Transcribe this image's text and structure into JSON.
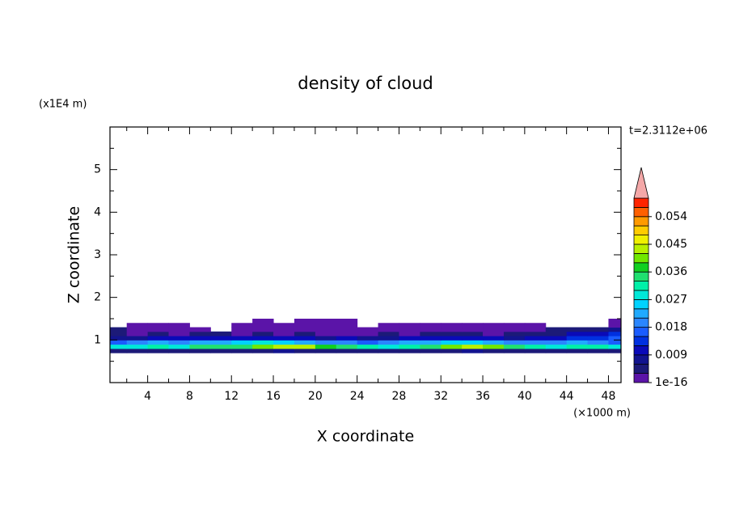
{
  "chart_data": {
    "type": "contour",
    "title": "density of cloud",
    "xlabel": "X coordinate",
    "ylabel": "Z coordinate",
    "x_unit": "(×1000 m)",
    "y_unit": "(x1E4 m)",
    "time_label": "t=2.3112e+06",
    "xlim": [
      0.4,
      49.2
    ],
    "ylim": [
      0,
      6
    ],
    "xticks": [
      4,
      8,
      12,
      16,
      20,
      24,
      28,
      32,
      36,
      40,
      44,
      48
    ],
    "xminorticks": [
      2,
      6,
      10,
      14,
      18,
      22,
      26,
      30,
      34,
      38,
      42,
      46
    ],
    "yticks": [
      1,
      2,
      3,
      4,
      5
    ],
    "yminorticks": [
      0.5,
      1.5,
      2.5,
      3.5,
      4.5,
      5.5
    ],
    "x": [
      1,
      3,
      5,
      7,
      9,
      11,
      13,
      15,
      17,
      19,
      21,
      23,
      25,
      27,
      29,
      31,
      33,
      35,
      37,
      39,
      41,
      43,
      45,
      47,
      49
    ],
    "z": [
      0.75,
      0.85,
      0.95,
      1.05,
      1.15,
      1.25,
      1.35,
      1.45
    ],
    "density": [
      [
        0.005,
        0.004,
        0.005,
        0.004,
        0.006,
        0.005,
        0.004,
        0.006,
        0.007,
        0.005,
        0.004,
        0.005,
        0.004,
        0.005,
        0.004,
        0.005,
        0.006,
        0.007,
        0.005,
        0.004,
        0.005,
        0.004,
        0.005,
        0.004,
        0.005
      ],
      [
        0.03,
        0.028,
        0.032,
        0.03,
        0.034,
        0.036,
        0.035,
        0.042,
        0.044,
        0.043,
        0.038,
        0.034,
        0.031,
        0.029,
        0.033,
        0.036,
        0.041,
        0.043,
        0.04,
        0.035,
        0.032,
        0.03,
        0.033,
        0.031,
        0.029
      ],
      [
        0.018,
        0.02,
        0.022,
        0.019,
        0.024,
        0.022,
        0.025,
        0.028,
        0.026,
        0.024,
        0.021,
        0.019,
        0.018,
        0.02,
        0.022,
        0.024,
        0.027,
        0.025,
        0.023,
        0.021,
        0.02,
        0.019,
        0.022,
        0.02,
        0.018
      ],
      [
        0.008,
        0.009,
        0.011,
        0.01,
        0.012,
        0.01,
        0.011,
        0.012,
        0.011,
        0.01,
        0.009,
        0.01,
        0.008,
        0.009,
        0.011,
        0.01,
        0.012,
        0.011,
        0.01,
        0.009,
        0.011,
        0.012,
        0.014,
        0.015,
        0.016
      ],
      [
        0.004,
        0.003,
        0.004,
        0.003,
        0.005,
        0.004,
        0.003,
        0.004,
        0.003,
        0.004,
        0.003,
        0.002,
        0.003,
        0.004,
        0.003,
        0.004,
        0.005,
        0.004,
        0.003,
        0.004,
        0.005,
        0.006,
        0.01,
        0.012,
        0.013
      ],
      [
        0.004,
        0.002,
        0.001,
        0.002,
        0.001,
        null,
        0.001,
        0.002,
        0.001,
        0.002,
        0.001,
        0.001,
        0.002,
        0.001,
        0.001,
        0.002,
        0.001,
        0.002,
        0.001,
        0.002,
        0.003,
        0.004,
        0.005,
        0.006,
        0.007
      ],
      [
        null,
        0.001,
        0.001,
        0.001,
        null,
        null,
        0.001,
        0.001,
        0.001,
        0.001,
        0.001,
        0.001,
        null,
        0.001,
        0.001,
        0.001,
        0.001,
        0.001,
        0.001,
        0.001,
        0.001,
        null,
        null,
        null,
        0.001
      ],
      [
        null,
        null,
        null,
        null,
        null,
        null,
        null,
        0.001,
        null,
        0.001,
        0.001,
        0.001,
        null,
        null,
        null,
        null,
        null,
        null,
        null,
        null,
        null,
        null,
        null,
        null,
        0.001
      ]
    ],
    "colorbar": {
      "lim": [
        1e-16,
        0.06
      ],
      "ticks": [
        1e-16,
        0.009,
        0.018,
        0.027,
        0.036,
        0.045,
        0.054
      ],
      "colors": [
        "#5b14a8",
        "#1c1a78",
        "#12148f",
        "#0a0ab8",
        "#0030e0",
        "#1a5cff",
        "#2a86ff",
        "#20aaff",
        "#00d2ff",
        "#00e8d8",
        "#00f0a8",
        "#20e070",
        "#10d020",
        "#70e800",
        "#b8f000",
        "#f0f000",
        "#ffcc00",
        "#ff9a00",
        "#ff6000",
        "#ff2400"
      ],
      "over_color": "#f4a8a8"
    }
  }
}
